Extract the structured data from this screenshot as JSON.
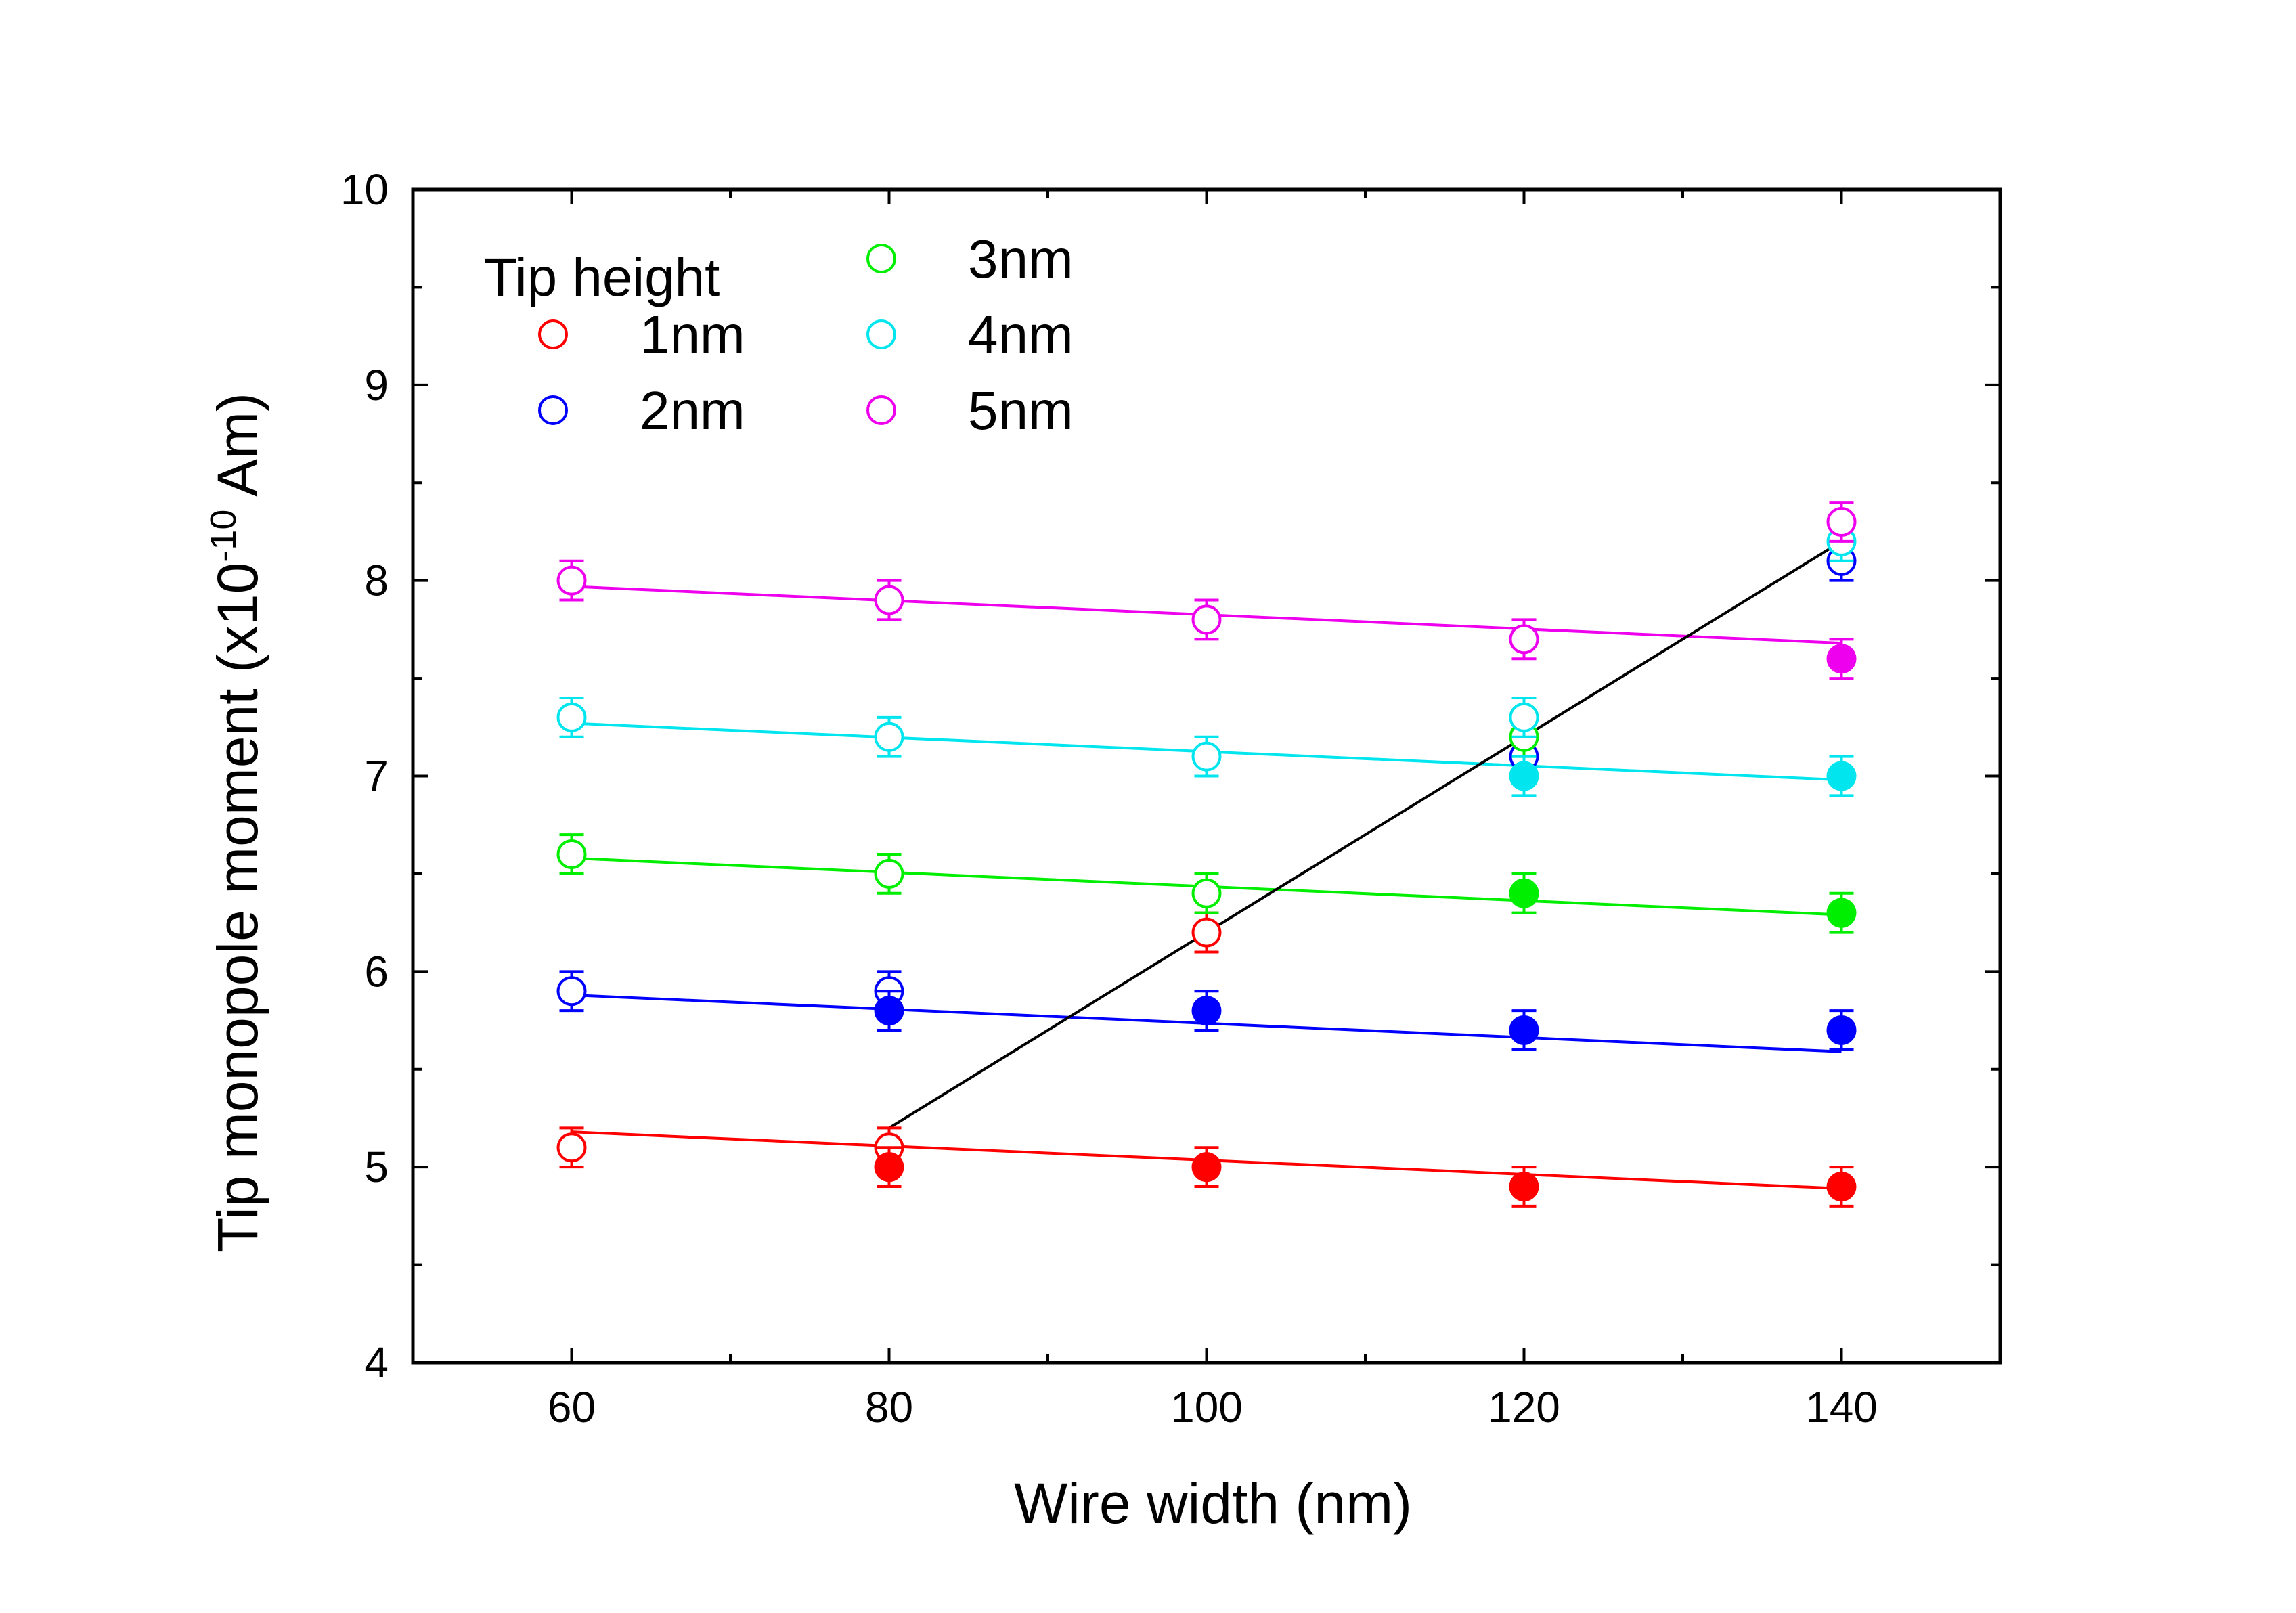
{
  "chart_data": {
    "type": "scatter",
    "xlabel": "Wire width (nm)",
    "ylabel": {
      "prefix": "Tip monopole moment (x10",
      "exponent": "-10",
      "suffix": " Am)"
    },
    "xlim": [
      50,
      150
    ],
    "ylim": [
      4,
      10
    ],
    "x_ticks": [
      60,
      80,
      100,
      120,
      140
    ],
    "y_ticks": [
      4,
      5,
      6,
      7,
      8,
      9,
      10
    ],
    "legend_title": "Tip height",
    "error_bar": 0.1,
    "series": [
      {
        "name": "1nm",
        "color": "#ff0000",
        "points": [
          {
            "x": 60,
            "y": 5.1,
            "filled": false
          },
          {
            "x": 80,
            "y": 5.1,
            "filled": false
          },
          {
            "x": 80,
            "y": 5.0,
            "filled": true
          },
          {
            "x": 100,
            "y": 6.2,
            "filled": false
          },
          {
            "x": 100,
            "y": 5.0,
            "filled": true
          },
          {
            "x": 120,
            "y": 4.9,
            "filled": true
          },
          {
            "x": 140,
            "y": 4.9,
            "filled": true
          }
        ],
        "fit": {
          "x0": 60,
          "y0": 5.18,
          "x1": 140,
          "y1": 4.89
        }
      },
      {
        "name": "2nm",
        "color": "#0000ff",
        "points": [
          {
            "x": 60,
            "y": 5.9,
            "filled": false
          },
          {
            "x": 80,
            "y": 5.9,
            "filled": false
          },
          {
            "x": 80,
            "y": 5.8,
            "filled": true
          },
          {
            "x": 100,
            "y": 5.8,
            "filled": true
          },
          {
            "x": 120,
            "y": 7.1,
            "filled": false
          },
          {
            "x": 120,
            "y": 5.7,
            "filled": true
          },
          {
            "x": 140,
            "y": 8.1,
            "filled": false
          },
          {
            "x": 140,
            "y": 5.7,
            "filled": true
          }
        ],
        "fit": {
          "x0": 60,
          "y0": 5.88,
          "x1": 140,
          "y1": 5.59
        }
      },
      {
        "name": "3nm",
        "color": "#00ee00",
        "points": [
          {
            "x": 60,
            "y": 6.6,
            "filled": false
          },
          {
            "x": 80,
            "y": 6.5,
            "filled": false
          },
          {
            "x": 100,
            "y": 6.4,
            "filled": false
          },
          {
            "x": 120,
            "y": 7.2,
            "filled": false
          },
          {
            "x": 120,
            "y": 6.4,
            "filled": true
          },
          {
            "x": 140,
            "y": 6.3,
            "filled": true
          }
        ],
        "fit": {
          "x0": 60,
          "y0": 6.58,
          "x1": 140,
          "y1": 6.29
        }
      },
      {
        "name": "4nm",
        "color": "#00e5ee",
        "points": [
          {
            "x": 60,
            "y": 7.3,
            "filled": false
          },
          {
            "x": 80,
            "y": 7.2,
            "filled": false
          },
          {
            "x": 100,
            "y": 7.1,
            "filled": false
          },
          {
            "x": 120,
            "y": 7.3,
            "filled": false
          },
          {
            "x": 120,
            "y": 7.0,
            "filled": true
          },
          {
            "x": 140,
            "y": 8.2,
            "filled": false
          },
          {
            "x": 140,
            "y": 7.0,
            "filled": true
          }
        ],
        "fit": {
          "x0": 60,
          "y0": 7.27,
          "x1": 140,
          "y1": 6.98
        }
      },
      {
        "name": "5nm",
        "color": "#ee00ee",
        "points": [
          {
            "x": 60,
            "y": 8.0,
            "filled": false
          },
          {
            "x": 80,
            "y": 7.9,
            "filled": false
          },
          {
            "x": 100,
            "y": 7.8,
            "filled": false
          },
          {
            "x": 120,
            "y": 7.7,
            "filled": false
          },
          {
            "x": 140,
            "y": 8.3,
            "filled": false
          },
          {
            "x": 140,
            "y": 7.6,
            "filled": true
          }
        ],
        "fit": {
          "x0": 60,
          "y0": 7.97,
          "x1": 140,
          "y1": 7.68
        }
      }
    ],
    "threshold_line": {
      "color": "#000000",
      "x0": 80,
      "y0": 5.2,
      "x1": 140,
      "y1": 8.2
    }
  }
}
